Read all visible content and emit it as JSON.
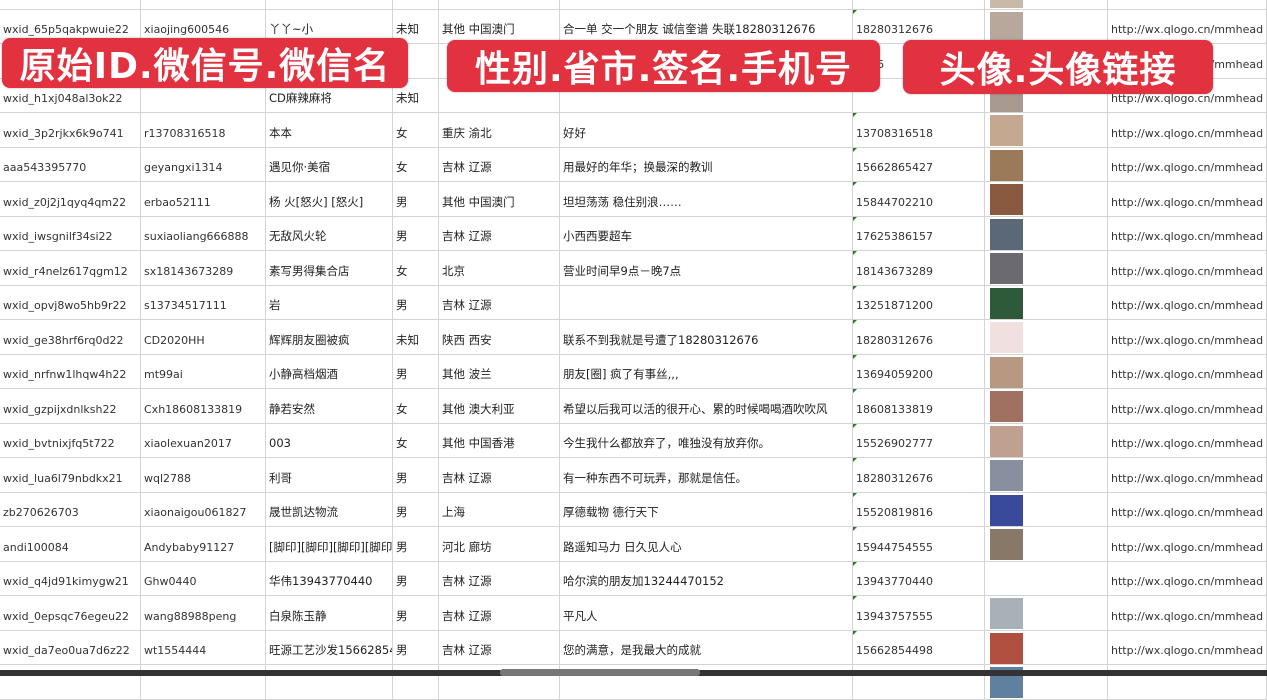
{
  "overlay_labels": [
    "原始ID.微信号.微信名",
    "性别.省市.签名.手机号",
    "头像.头像链接"
  ],
  "url_prefix": "http://wx.qlogo.cn/mmhead",
  "rows": [
    {
      "id": "",
      "wx": "",
      "name": "",
      "sex": "",
      "region": "",
      "sign": "",
      "phone": "",
      "avatar": "#c9b9a8"
    },
    {
      "id": "wxid_65p5qakpwuie22",
      "wx": "xiaojing600546",
      "name": "丫丫~小",
      "sex": "未知",
      "region": "其他 中国澳门",
      "sign": "合一单 交一个朋友 诚信奎谱 失联18280312676",
      "phone": "18280312676",
      "avatar": "#b8a89c"
    },
    {
      "id": "",
      "wx": "",
      "name": "",
      "sex": "",
      "region": "",
      "sign": "",
      "phone": "5386",
      "avatar": "#7b8fb0"
    },
    {
      "id": "wxid_h1xj048al3ok22",
      "wx": "",
      "name": "CD麻辣麻将",
      "sex": "未知",
      "region": "",
      "sign": "",
      "phone": "",
      "avatar": "#a89a90"
    },
    {
      "id": "wxid_3p2rjkx6k9o741",
      "wx": "r13708316518",
      "name": "本本",
      "sex": "女",
      "region": "重庆 渝北",
      "sign": "好好",
      "phone": "13708316518",
      "avatar": "#c4a890"
    },
    {
      "id": "aaa543395770",
      "wx": "geyangxi1314",
      "name": "遇见你·美宿",
      "sex": "女",
      "region": "吉林 辽源",
      "sign": "用最好的年华；换最深的教训",
      "phone": "15662865427",
      "avatar": "#9a7a58"
    },
    {
      "id": "wxid_z0j2j1qyq4qm22",
      "wx": "erbao52111",
      "name": "杨 火[怒火] [怒火]",
      "sex": "男",
      "region": "其他 中国澳门",
      "sign": "坦坦荡荡 稳住别浪……",
      "phone": "15844702210",
      "avatar": "#8a5a40"
    },
    {
      "id": "wxid_iwsgnilf34si22",
      "wx": "suxiaoliang666888",
      "name": "无敌风火轮",
      "sex": "男",
      "region": "吉林 辽源",
      "sign": "小西西要超车",
      "phone": "17625386157",
      "avatar": "#5a6878"
    },
    {
      "id": "wxid_r4nelz617qgm12",
      "wx": "sx18143673289",
      "name": "素写男得集合店",
      "sex": "女",
      "region": "北京",
      "sign": "营业时间早9点－晚7点",
      "phone": "18143673289",
      "avatar": "#6a6a70"
    },
    {
      "id": "wxid_opvj8wo5hb9r22",
      "wx": "s13734517111",
      "name": "岩",
      "sex": "男",
      "region": "吉林 辽源",
      "sign": "",
      "phone": "13251871200",
      "avatar": "#2f5a3a"
    },
    {
      "id": "wxid_ge38hrf6rq0d22",
      "wx": "CD2020HH",
      "name": "辉辉朋友圈被疯",
      "sex": "未知",
      "region": "陕西 西安",
      "sign": "联系不到我就是号遭了18280312676",
      "phone": "18280312676",
      "avatar": "#f0e0e0"
    },
    {
      "id": "wxid_nrfnw1lhqw4h22",
      "wx": "mt99ai",
      "name": "小静高档烟酒",
      "sex": "男",
      "region": "其他 波兰",
      "sign": "朋友[圈] 疯了有事丝,,,",
      "phone": "13694059200",
      "avatar": "#b89880"
    },
    {
      "id": "wxid_gzpijxdnlksh22",
      "wx": "Cxh18608133819",
      "name": "静若安然",
      "sex": "女",
      "region": "其他 澳大利亚",
      "sign": "希望以后我可以活的很开心、累的时候喝喝酒吹吹风",
      "phone": "18608133819",
      "avatar": "#a07060"
    },
    {
      "id": "wxid_bvtnixjfq5t722",
      "wx": "xiaolexuan2017",
      "name": "003",
      "sex": "女",
      "region": "其他 中国香港",
      "sign": "今生我什么都放弃了，唯独没有放弃你。",
      "phone": "15526902777",
      "avatar": "#c0a090"
    },
    {
      "id": "wxid_lua6l79nbdkx21",
      "wx": "wql2788",
      "name": "利哥",
      "sex": "男",
      "region": "吉林 辽源",
      "sign": "有一种东西不可玩弄，那就是信任。",
      "phone": "18280312676",
      "avatar": "#8890a0"
    },
    {
      "id": "zb270626703",
      "wx": "xiaonaigou061827",
      "name": "晟世凯达物流",
      "sex": "男",
      "region": "上海",
      "sign": "厚德载物 德行天下",
      "phone": "15520819816",
      "avatar": "#3a4a9a"
    },
    {
      "id": "andi100084",
      "wx": "Andybaby91127",
      "name": "[脚印][脚印][脚印][脚印]",
      "sex": "男",
      "region": "河北 廊坊",
      "sign": "路遥知马力 日久见人心",
      "phone": "15944754555",
      "avatar": "#887868"
    },
    {
      "id": "wxid_q4jd91kimygw21",
      "wx": "Ghw0440",
      "name": "华伟13943770440",
      "sex": "男",
      "region": "吉林 辽源",
      "sign": "哈尔滨的朋友加13244470152",
      "phone": "13943770440",
      "avatar": "#ffffff"
    },
    {
      "id": "wxid_0epsqc76egeu22",
      "wx": "wang88988peng",
      "name": "白泉陈玉静",
      "sex": "男",
      "region": "吉林 辽源",
      "sign": "平凡人",
      "phone": "13943757555",
      "avatar": "#a8b0b8"
    },
    {
      "id": "wxid_da7eo0ua7d6z22",
      "wx": "wt1554444",
      "name": "旺源工艺沙发15662854",
      "sex": "男",
      "region": "吉林 辽源",
      "sign": "您的满意，是我最大的成就",
      "phone": "15662854498",
      "avatar": "#b05040"
    },
    {
      "id": "",
      "wx": "",
      "name": "",
      "sex": "",
      "region": "",
      "sign": "",
      "phone": "",
      "avatar": "#6080a0"
    }
  ]
}
